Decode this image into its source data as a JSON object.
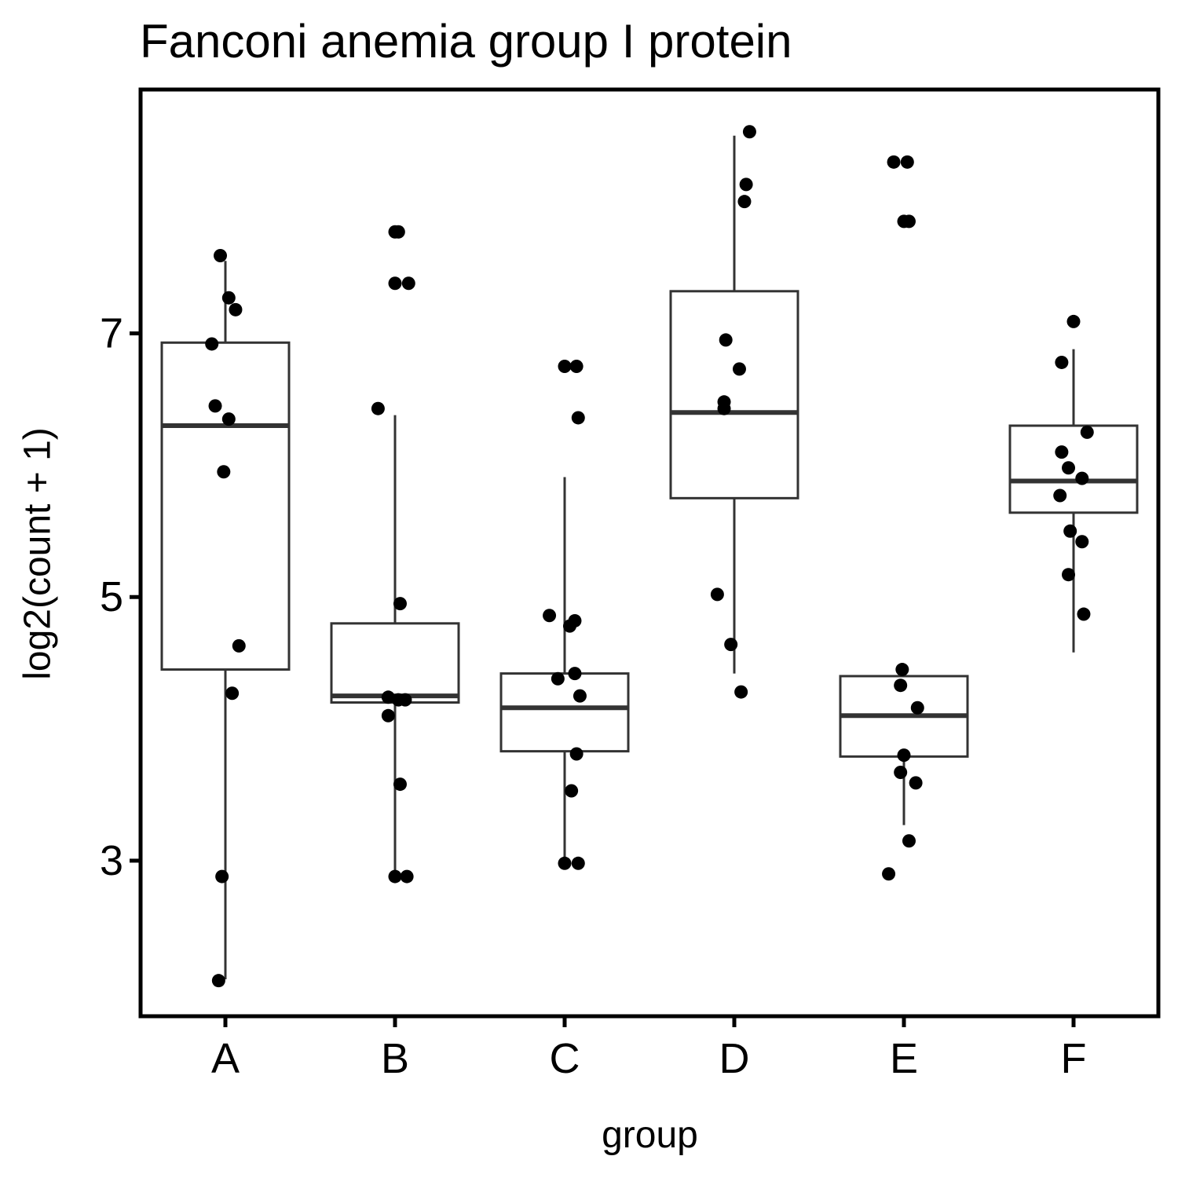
{
  "chart_data": {
    "type": "boxplot",
    "title": "Fanconi anemia group I protein",
    "xlabel": "group",
    "ylabel": "log2(count + 1)",
    "ylim": [
      1.82,
      8.85
    ],
    "yticks": [
      3,
      5,
      7
    ],
    "categories": [
      "A",
      "B",
      "C",
      "D",
      "E",
      "F"
    ],
    "boxes": [
      {
        "group": "A",
        "whisker_low": 2.1,
        "q1": 4.45,
        "median": 6.3,
        "q3": 6.93,
        "whisker_high": 7.55
      },
      {
        "group": "B",
        "whisker_low": 2.88,
        "q1": 4.2,
        "median": 4.25,
        "q3": 4.8,
        "whisker_high": 6.38
      },
      {
        "group": "C",
        "whisker_low": 2.98,
        "q1": 3.83,
        "median": 4.16,
        "q3": 4.42,
        "whisker_high": 5.91
      },
      {
        "group": "D",
        "whisker_low": 4.42,
        "q1": 5.75,
        "median": 6.4,
        "q3": 7.32,
        "whisker_high": 8.5
      },
      {
        "group": "E",
        "whisker_low": 3.27,
        "q1": 3.79,
        "median": 4.1,
        "q3": 4.4,
        "whisker_high": 4.48
      },
      {
        "group": "F",
        "whisker_low": 4.58,
        "q1": 5.64,
        "median": 5.88,
        "q3": 6.3,
        "whisker_high": 6.88
      }
    ],
    "points": [
      {
        "group": "A",
        "x": -0.03,
        "y": 7.59
      },
      {
        "group": "A",
        "x": 0.02,
        "y": 7.27
      },
      {
        "group": "A",
        "x": 0.06,
        "y": 7.18
      },
      {
        "group": "A",
        "x": -0.08,
        "y": 6.92
      },
      {
        "group": "A",
        "x": -0.06,
        "y": 6.45
      },
      {
        "group": "A",
        "x": 0.02,
        "y": 6.35
      },
      {
        "group": "A",
        "x": -0.01,
        "y": 5.95
      },
      {
        "group": "A",
        "x": 0.08,
        "y": 4.63
      },
      {
        "group": "A",
        "x": 0.04,
        "y": 4.27
      },
      {
        "group": "A",
        "x": -0.02,
        "y": 2.88
      },
      {
        "group": "A",
        "x": -0.04,
        "y": 2.09
      },
      {
        "group": "B",
        "x": 0.0,
        "y": 7.77
      },
      {
        "group": "B",
        "x": 0.02,
        "y": 7.77
      },
      {
        "group": "B",
        "x": 0.0,
        "y": 7.38
      },
      {
        "group": "B",
        "x": 0.08,
        "y": 7.38
      },
      {
        "group": "B",
        "x": -0.1,
        "y": 6.43
      },
      {
        "group": "B",
        "x": 0.03,
        "y": 4.95
      },
      {
        "group": "B",
        "x": -0.04,
        "y": 4.24
      },
      {
        "group": "B",
        "x": 0.02,
        "y": 4.22
      },
      {
        "group": "B",
        "x": 0.06,
        "y": 4.22
      },
      {
        "group": "B",
        "x": -0.04,
        "y": 4.1
      },
      {
        "group": "B",
        "x": 0.03,
        "y": 3.58
      },
      {
        "group": "B",
        "x": 0.0,
        "y": 2.88
      },
      {
        "group": "B",
        "x": 0.07,
        "y": 2.88
      },
      {
        "group": "C",
        "x": 0.07,
        "y": 6.75
      },
      {
        "group": "C",
        "x": 0.0,
        "y": 6.75
      },
      {
        "group": "C",
        "x": 0.08,
        "y": 6.36
      },
      {
        "group": "C",
        "x": -0.09,
        "y": 4.86
      },
      {
        "group": "C",
        "x": 0.06,
        "y": 4.82
      },
      {
        "group": "C",
        "x": 0.03,
        "y": 4.78
      },
      {
        "group": "C",
        "x": 0.06,
        "y": 4.42
      },
      {
        "group": "C",
        "x": -0.04,
        "y": 4.38
      },
      {
        "group": "C",
        "x": 0.09,
        "y": 4.25
      },
      {
        "group": "C",
        "x": 0.07,
        "y": 3.81
      },
      {
        "group": "C",
        "x": 0.04,
        "y": 3.53
      },
      {
        "group": "C",
        "x": 0.08,
        "y": 2.98
      },
      {
        "group": "C",
        "x": 0.0,
        "y": 2.98
      },
      {
        "group": "D",
        "x": 0.09,
        "y": 8.53
      },
      {
        "group": "D",
        "x": 0.07,
        "y": 8.13
      },
      {
        "group": "D",
        "x": 0.06,
        "y": 8.0
      },
      {
        "group": "D",
        "x": -0.05,
        "y": 6.95
      },
      {
        "group": "D",
        "x": 0.03,
        "y": 6.73
      },
      {
        "group": "D",
        "x": -0.06,
        "y": 6.48
      },
      {
        "group": "D",
        "x": -0.06,
        "y": 6.43
      },
      {
        "group": "D",
        "x": -0.1,
        "y": 5.02
      },
      {
        "group": "D",
        "x": -0.02,
        "y": 4.64
      },
      {
        "group": "D",
        "x": 0.04,
        "y": 4.28
      },
      {
        "group": "E",
        "x": -0.06,
        "y": 8.3
      },
      {
        "group": "E",
        "x": 0.02,
        "y": 8.3
      },
      {
        "group": "E",
        "x": 0.0,
        "y": 7.85
      },
      {
        "group": "E",
        "x": 0.03,
        "y": 7.85
      },
      {
        "group": "E",
        "x": -0.01,
        "y": 4.45
      },
      {
        "group": "E",
        "x": -0.02,
        "y": 4.33
      },
      {
        "group": "E",
        "x": 0.08,
        "y": 4.16
      },
      {
        "group": "E",
        "x": 0.0,
        "y": 3.8
      },
      {
        "group": "E",
        "x": -0.02,
        "y": 3.67
      },
      {
        "group": "E",
        "x": 0.07,
        "y": 3.59
      },
      {
        "group": "E",
        "x": 0.03,
        "y": 3.15
      },
      {
        "group": "E",
        "x": -0.09,
        "y": 2.9
      },
      {
        "group": "F",
        "x": 0.0,
        "y": 7.09
      },
      {
        "group": "F",
        "x": 0.08,
        "y": 6.25
      },
      {
        "group": "F",
        "x": -0.07,
        "y": 6.78
      },
      {
        "group": "F",
        "x": -0.07,
        "y": 6.1
      },
      {
        "group": "F",
        "x": -0.03,
        "y": 5.98
      },
      {
        "group": "F",
        "x": 0.05,
        "y": 5.9
      },
      {
        "group": "F",
        "x": -0.08,
        "y": 5.77
      },
      {
        "group": "F",
        "x": -0.02,
        "y": 5.5
      },
      {
        "group": "F",
        "x": 0.05,
        "y": 5.42
      },
      {
        "group": "F",
        "x": -0.03,
        "y": 5.17
      },
      {
        "group": "F",
        "x": 0.06,
        "y": 4.87
      }
    ]
  }
}
